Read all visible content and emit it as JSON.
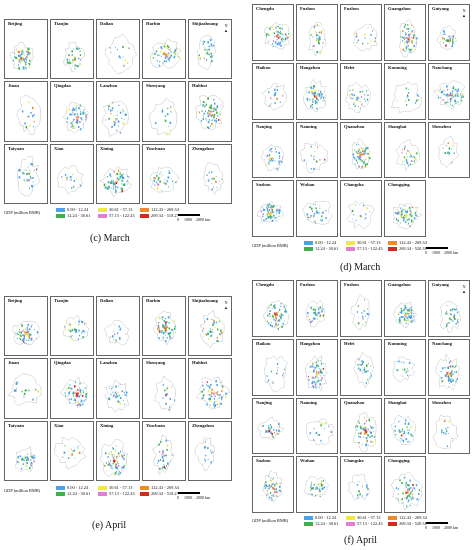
{
  "left_cities": [
    "Beijing",
    "Tianjin",
    "Dalian",
    "Harbin",
    "Shijiazhuang",
    "Jinan",
    "Qingdao",
    "Lanzhou",
    "Shenyang",
    "Huhhot",
    "Taiyuan",
    "Xian",
    "Xining",
    "Yinchuan",
    "Zhengzhou"
  ],
  "right_cities": [
    "Chengdu",
    "Fuzhou",
    "Fuzhou",
    "Guangzhou",
    "Guiyang",
    "Haikou",
    "Hangzhou",
    "Hefei",
    "Kunming",
    "Nanchang",
    "Nanjing",
    "Nanning",
    "Quanzhou",
    "Shanghai",
    "Shenzhen",
    "Suzhou",
    "Wuhan",
    "Changsha",
    "Chongqing"
  ],
  "legend": {
    "title": "GDP (million RMB)",
    "items": [
      {
        "label": "0.00 - 12.24",
        "color": "#4aa3ea"
      },
      {
        "label": "12.24 - 30.61",
        "color": "#3cb34a"
      },
      {
        "label": "30.61 - 57.13",
        "color": "#f2ea3a"
      },
      {
        "label": "57.13 - 122.43",
        "color": "#e27fd0"
      },
      {
        "label": "122.43 - 269.34",
        "color": "#f08a24"
      },
      {
        "label": "269.34 - 518.27",
        "color": "#d8281e"
      }
    ]
  },
  "legend_right_last": "269.34 - 520.31",
  "scale": {
    "zero": "0",
    "mid": "1000",
    "end": "2000 km"
  },
  "north": "N",
  "captions": {
    "c": "(c) March",
    "d": "(d) March",
    "e": "(e) April",
    "f": "(f) April"
  }
}
